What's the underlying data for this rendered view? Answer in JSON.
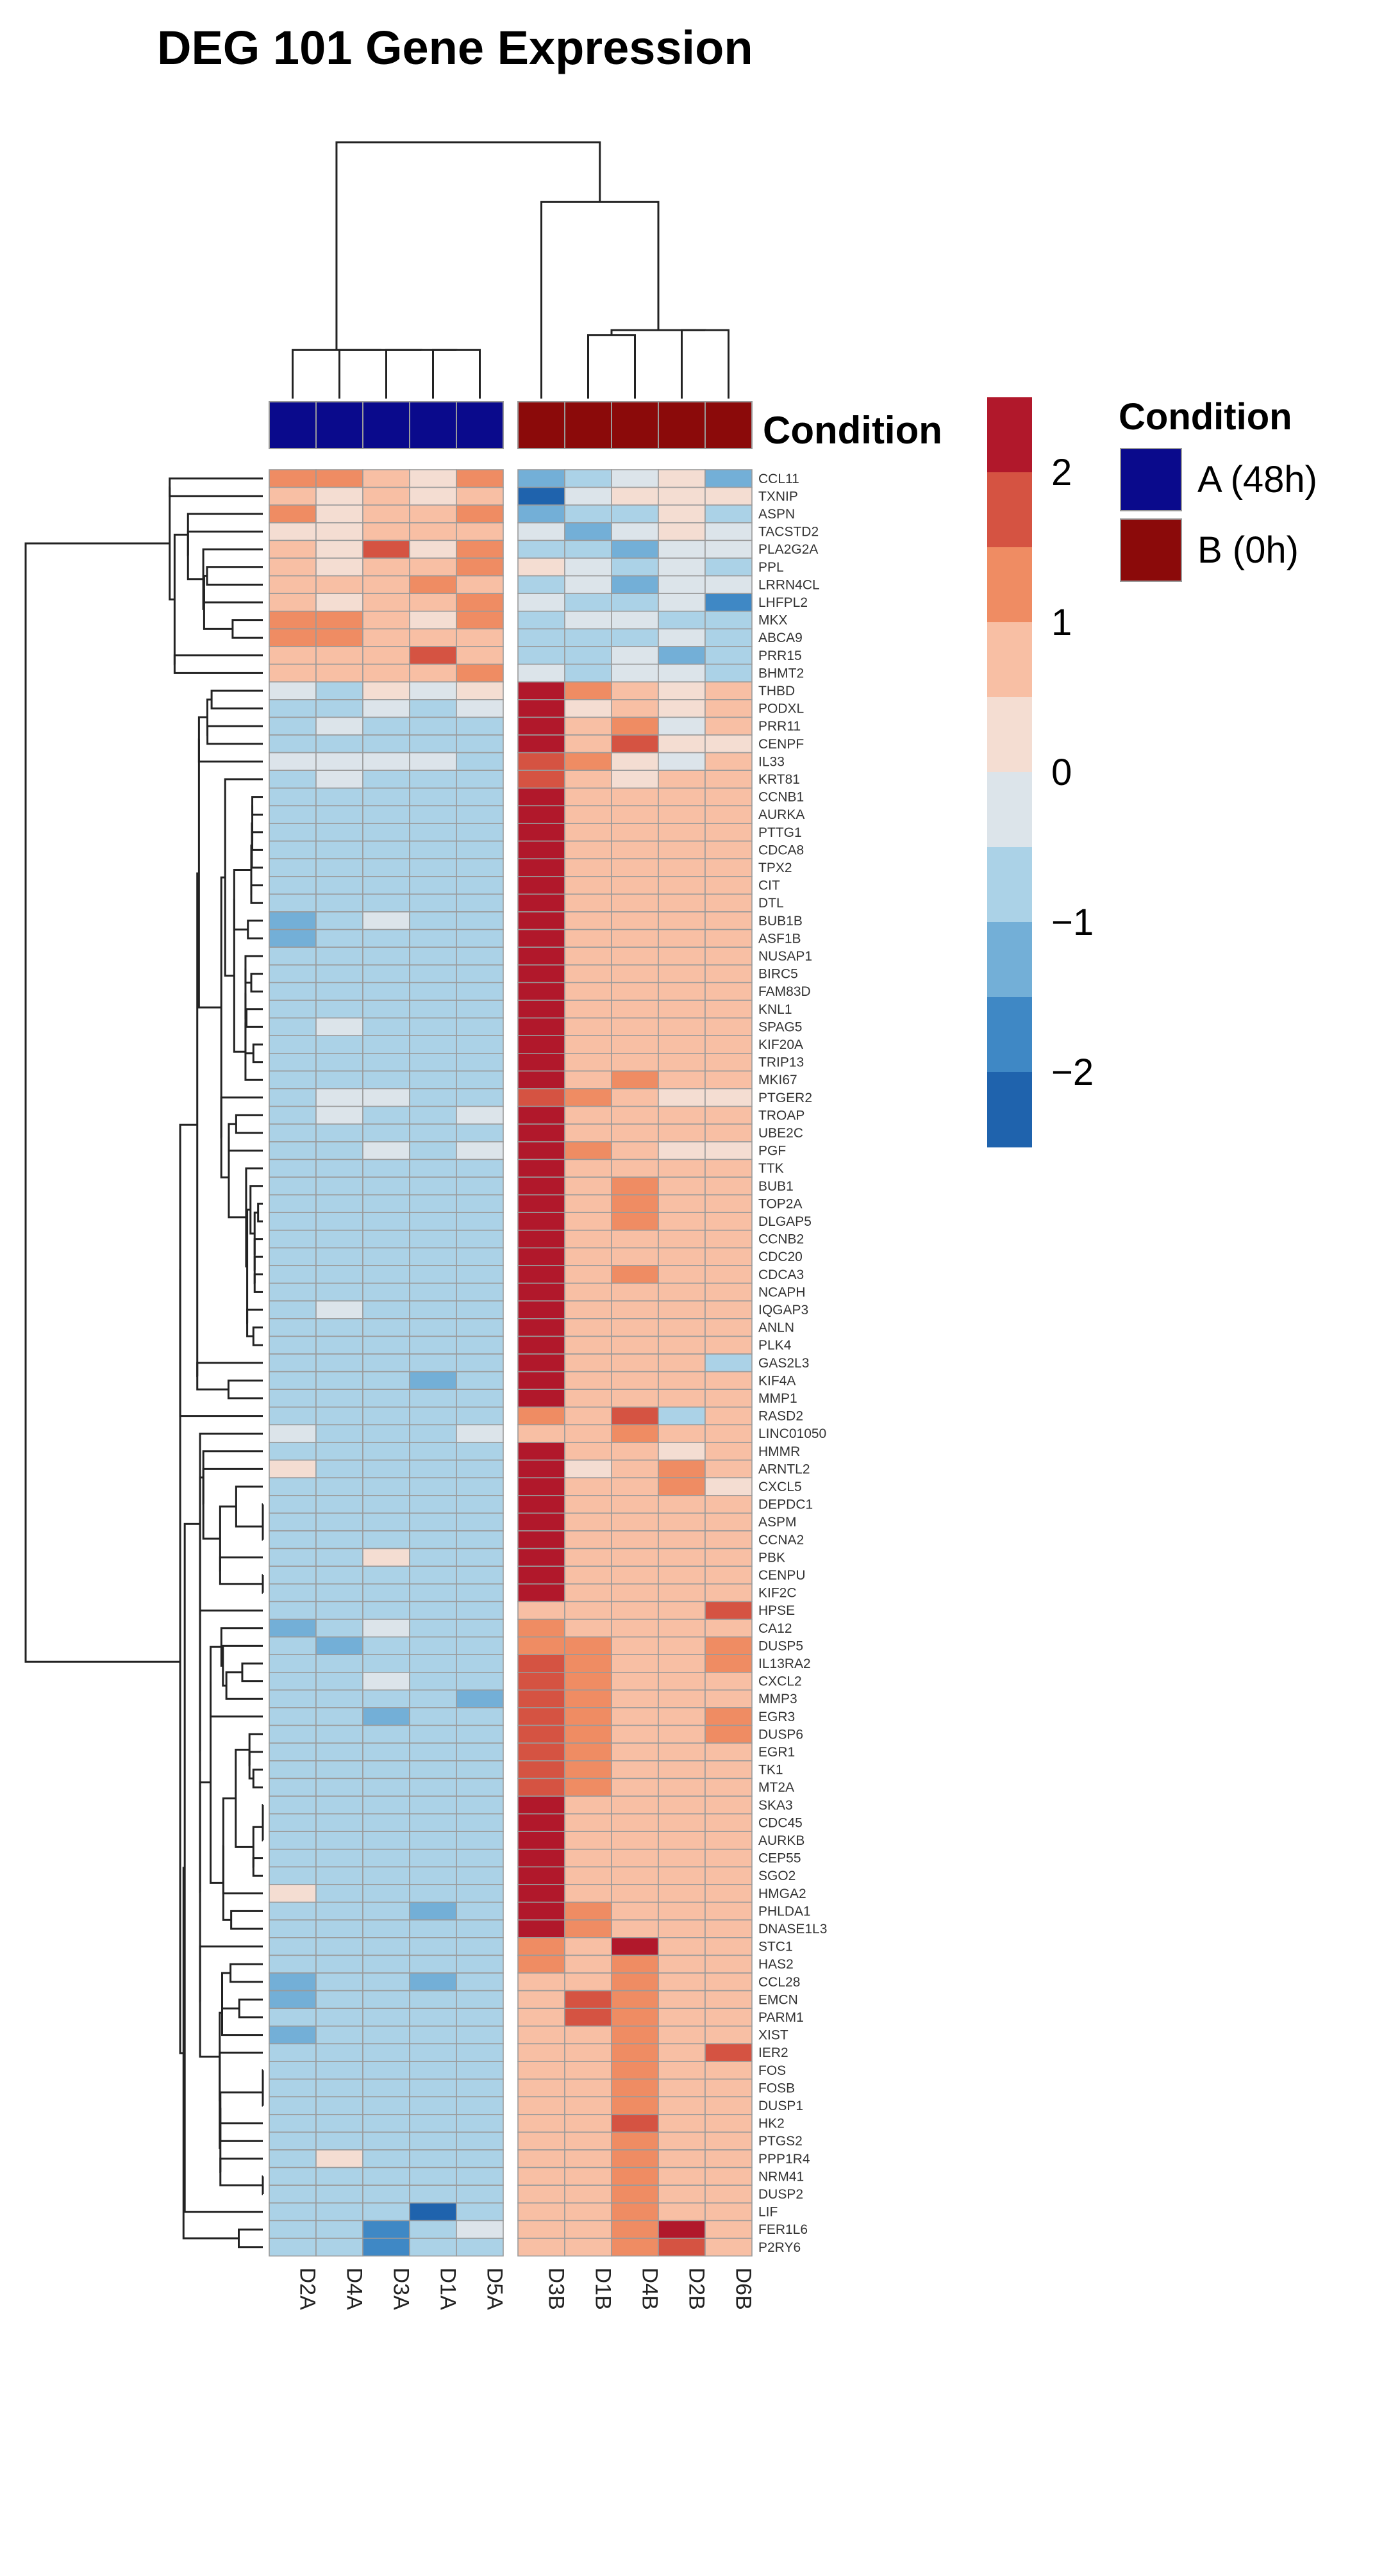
{
  "chart_data": {
    "type": "heatmap",
    "title": "DEG 101 Gene Expression",
    "samples": [
      "D2A",
      "D4A",
      "D3A",
      "D1A",
      "D5A",
      "D3B",
      "D1B",
      "D4B",
      "D2B",
      "D6B"
    ],
    "condition_label": "Condition",
    "conditions": [
      {
        "name": "A (48h)",
        "color": "#0a0a8c"
      },
      {
        "name": "B (0h)",
        "color": "#8b0a0a"
      }
    ],
    "sample_condition": [
      "A (48h)",
      "A (48h)",
      "A (48h)",
      "A (48h)",
      "A (48h)",
      "B (0h)",
      "B (0h)",
      "B (0h)",
      "B (0h)",
      "B (0h)"
    ],
    "color_scale": {
      "min": -2.5,
      "max": 2.5,
      "ticks": [
        "2",
        "1",
        "0",
        "−1",
        "−2"
      ],
      "tick_values": [
        2,
        1,
        0,
        -1,
        -2
      ],
      "colors": [
        "#1f63ad",
        "#3f88c5",
        "#73afd7",
        "#abd2e7",
        "#dce4ea",
        "#f4ddd2",
        "#f8bfa4",
        "#ef8c63",
        "#d55342",
        "#b1182b"
      ]
    },
    "genes": [
      "CCL11",
      "TXNIP",
      "ASPN",
      "TACSTD2",
      "PLA2G2A",
      "PPL",
      "LRRN4CL",
      "LHFPL2",
      "MKX",
      "ABCA9",
      "PRR15",
      "BHMT2",
      "THBD",
      "PODXL",
      "PRR11",
      "CENPF",
      "IL33",
      "KRT81",
      "CCNB1",
      "AURKA",
      "PTTG1",
      "CDCA8",
      "TPX2",
      "CIT",
      "DTL",
      "BUB1B",
      "ASF1B",
      "NUSAP1",
      "BIRC5",
      "FAM83D",
      "KNL1",
      "SPAG5",
      "KIF20A",
      "TRIP13",
      "MKI67",
      "PTGER2",
      "TROAP",
      "UBE2C",
      "PGF",
      "TTK",
      "BUB1",
      "TOP2A",
      "DLGAP5",
      "CCNB2",
      "CDC20",
      "CDCA3",
      "NCAPH",
      "IQGAP3",
      "ANLN",
      "PLK4",
      "GAS2L3",
      "KIF4A",
      "MMP1",
      "RASD2",
      "LINC01050",
      "HMMR",
      "ARNTL2",
      "CXCL5",
      "DEPDC1",
      "ASPM",
      "CCNA2",
      "PBK",
      "CENPU",
      "KIF2C",
      "HPSE",
      "CA12",
      "DUSP5",
      "IL13RA2",
      "CXCL2",
      "MMP3",
      "EGR3",
      "DUSP6",
      "EGR1",
      "TK1",
      "MT2A",
      "SKA3",
      "CDC45",
      "AURKB",
      "CEP55",
      "SGO2",
      "HMGA2",
      "PHLDA1",
      "DNASE1L3",
      "STC1",
      "HAS2",
      "CCL28",
      "EMCN",
      "PARM1",
      "XIST",
      "IER2",
      "FOS",
      "FOSB",
      "DUSP1",
      "HK2",
      "PTGS2",
      "PPP1R4",
      "NRM41",
      "DUSP2",
      "LIF",
      "FER1L6",
      "P2RY6"
    ],
    "values": [
      [
        1.0,
        1.1,
        0.7,
        0.3,
        1.1,
        -1.2,
        -0.9,
        -0.1,
        0.2,
        -1.1
      ],
      [
        0.5,
        0.3,
        0.7,
        0.1,
        0.9,
        -2.3,
        -0.2,
        0.0,
        0.1,
        0.0
      ],
      [
        1.2,
        0.4,
        0.9,
        0.8,
        1.0,
        -1.3,
        -0.8,
        -0.7,
        0.1,
        -0.7
      ],
      [
        0.2,
        0.0,
        0.8,
        0.6,
        0.5,
        -0.3,
        -1.2,
        -0.5,
        0.3,
        -0.2
      ],
      [
        0.9,
        0.3,
        1.6,
        0.3,
        1.2,
        -1.0,
        -0.9,
        -1.3,
        -0.2,
        -0.5
      ],
      [
        0.8,
        0.2,
        0.9,
        0.9,
        1.2,
        0.1,
        -0.5,
        -1.0,
        -0.2,
        -0.7
      ],
      [
        0.6,
        0.5,
        0.8,
        1.1,
        0.8,
        -0.7,
        -0.2,
        -1.2,
        -0.4,
        -0.2
      ],
      [
        0.7,
        0.2,
        0.9,
        0.8,
        1.1,
        -0.4,
        -0.6,
        -0.9,
        -0.1,
        -1.6
      ],
      [
        1.1,
        1.0,
        0.8,
        0.3,
        1.0,
        -0.7,
        -0.5,
        -0.4,
        -0.6,
        -0.8
      ],
      [
        1.3,
        1.0,
        0.9,
        0.6,
        0.9,
        -0.9,
        -0.6,
        -0.8,
        -0.4,
        -0.9
      ],
      [
        0.8,
        0.5,
        0.6,
        1.8,
        0.7,
        -0.9,
        -0.6,
        -0.1,
        -1.5,
        -0.7
      ],
      [
        0.8,
        0.9,
        0.6,
        0.7,
        1.0,
        -0.3,
        -0.8,
        -0.5,
        -0.3,
        -0.9
      ],
      [
        -0.5,
        -0.8,
        0.1,
        -0.5,
        0.0,
        2.3,
        1.0,
        0.9,
        0.2,
        0.7
      ],
      [
        -0.8,
        -0.6,
        -0.3,
        -0.6,
        -0.5,
        2.4,
        0.3,
        0.6,
        0.2,
        0.5
      ],
      [
        -0.9,
        -0.5,
        -0.6,
        -0.9,
        -0.9,
        2.1,
        0.9,
        1.1,
        -0.4,
        0.6
      ],
      [
        -0.7,
        -0.9,
        -0.7,
        -0.7,
        -0.8,
        2.2,
        0.7,
        1.8,
        0.3,
        0.3
      ],
      [
        -0.4,
        -0.5,
        -0.3,
        -0.2,
        -0.8,
        1.7,
        1.4,
        0.4,
        -0.3,
        0.6
      ],
      [
        -0.6,
        -0.3,
        -0.6,
        -0.6,
        -0.7,
        1.8,
        0.6,
        0.2,
        0.5,
        0.6
      ],
      [
        -0.7,
        -0.6,
        -0.6,
        -0.8,
        -0.8,
        2.3,
        0.5,
        0.5,
        0.6,
        0.6
      ],
      [
        -0.7,
        -0.6,
        -0.7,
        -0.8,
        -0.7,
        2.3,
        0.6,
        0.6,
        0.7,
        0.6
      ],
      [
        -0.8,
        -0.7,
        -0.7,
        -0.9,
        -0.8,
        2.3,
        0.6,
        0.6,
        0.6,
        0.5
      ],
      [
        -0.8,
        -0.7,
        -0.6,
        -0.8,
        -0.8,
        2.2,
        0.5,
        0.6,
        0.6,
        0.6
      ],
      [
        -0.8,
        -0.6,
        -0.7,
        -0.9,
        -0.8,
        2.3,
        0.7,
        0.6,
        0.5,
        0.6
      ],
      [
        -0.7,
        -0.7,
        -0.6,
        -0.8,
        -0.6,
        2.3,
        0.6,
        0.5,
        0.5,
        0.5
      ],
      [
        -0.9,
        -0.7,
        -0.6,
        -0.8,
        -0.6,
        2.3,
        0.6,
        0.6,
        0.5,
        0.6
      ],
      [
        -1.3,
        -0.6,
        -0.4,
        -0.8,
        -0.8,
        2.3,
        0.6,
        0.5,
        0.5,
        0.5
      ],
      [
        -1.4,
        -0.7,
        -0.6,
        -0.7,
        -0.7,
        2.3,
        0.6,
        0.5,
        0.6,
        0.6
      ],
      [
        -0.8,
        -0.6,
        -0.7,
        -0.8,
        -0.8,
        2.3,
        0.6,
        0.9,
        0.6,
        0.5
      ],
      [
        -0.8,
        -0.6,
        -0.7,
        -0.8,
        -0.8,
        2.2,
        0.6,
        0.6,
        0.6,
        0.5
      ],
      [
        -0.8,
        -0.7,
        -0.7,
        -0.7,
        -0.9,
        2.3,
        0.6,
        0.5,
        0.6,
        0.6
      ],
      [
        -0.8,
        -0.6,
        -0.6,
        -0.8,
        -1.0,
        2.2,
        0.6,
        0.9,
        0.6,
        0.6
      ],
      [
        -0.8,
        -0.3,
        -0.7,
        -0.8,
        -0.9,
        2.2,
        0.6,
        0.9,
        0.6,
        0.7
      ],
      [
        -0.8,
        -0.6,
        -0.9,
        -0.8,
        -0.8,
        2.2,
        0.6,
        0.6,
        0.6,
        0.6
      ],
      [
        -0.8,
        -0.6,
        -0.7,
        -0.8,
        -0.8,
        2.2,
        0.6,
        0.6,
        0.6,
        0.6
      ],
      [
        -0.8,
        -0.7,
        -0.7,
        -0.8,
        -0.8,
        2.2,
        0.6,
        1.0,
        0.6,
        0.5
      ],
      [
        -0.7,
        -0.4,
        -0.5,
        -0.8,
        -0.7,
        1.8,
        1.1,
        0.6,
        0.1,
        0.4
      ],
      [
        -0.7,
        -0.5,
        -0.9,
        -0.9,
        -0.4,
        2.2,
        0.9,
        0.6,
        0.6,
        0.7
      ],
      [
        -0.8,
        -0.7,
        -0.7,
        -0.9,
        -0.7,
        2.2,
        0.6,
        0.7,
        0.6,
        0.5
      ],
      [
        -1.0,
        -0.6,
        -0.3,
        -0.9,
        -0.5,
        2.1,
        1.0,
        0.7,
        0.3,
        0.4
      ],
      [
        -0.8,
        -0.7,
        -0.7,
        -0.8,
        -0.8,
        2.2,
        0.6,
        0.6,
        0.6,
        0.6
      ],
      [
        -0.7,
        -0.7,
        -0.9,
        -0.8,
        -0.8,
        2.3,
        0.6,
        1.0,
        0.6,
        0.5
      ],
      [
        -0.8,
        -0.6,
        -0.7,
        -0.8,
        -0.8,
        2.2,
        0.6,
        1.0,
        0.6,
        0.6
      ],
      [
        -0.8,
        -0.7,
        -0.7,
        -0.8,
        -0.8,
        2.2,
        0.6,
        1.0,
        0.6,
        0.6
      ],
      [
        -0.8,
        -0.6,
        -0.7,
        -0.7,
        -0.8,
        2.3,
        0.6,
        0.9,
        0.6,
        0.6
      ],
      [
        -0.7,
        -0.6,
        -0.7,
        -0.8,
        -0.8,
        2.2,
        0.6,
        0.9,
        0.6,
        0.5
      ],
      [
        -0.8,
        -0.6,
        -0.7,
        -0.8,
        -0.7,
        2.3,
        0.6,
        1.0,
        0.6,
        0.6
      ],
      [
        -0.8,
        -0.6,
        -0.7,
        -0.8,
        -0.8,
        2.2,
        0.6,
        0.9,
        0.6,
        0.6
      ],
      [
        -0.7,
        -0.3,
        -0.7,
        -0.8,
        -0.7,
        2.2,
        0.6,
        0.9,
        0.6,
        0.5
      ],
      [
        -0.8,
        -0.6,
        -0.7,
        -0.8,
        -0.8,
        2.2,
        0.6,
        0.9,
        0.6,
        0.6
      ],
      [
        -0.8,
        -0.6,
        -0.6,
        -0.8,
        -0.7,
        2.2,
        0.6,
        0.8,
        0.6,
        0.5
      ],
      [
        -0.8,
        -0.6,
        -0.9,
        -0.9,
        -0.8,
        2.2,
        0.6,
        0.8,
        0.6,
        -0.8
      ],
      [
        -0.8,
        -0.6,
        -0.7,
        -1.5,
        -0.7,
        2.2,
        0.6,
        0.8,
        0.6,
        0.5
      ],
      [
        -0.8,
        -0.6,
        -0.7,
        -0.8,
        -0.8,
        2.3,
        0.6,
        0.8,
        0.5,
        0.6
      ],
      [
        -0.8,
        -0.6,
        -0.7,
        -0.8,
        -0.6,
        1.4,
        0.7,
        1.6,
        -0.8,
        0.6
      ],
      [
        -0.5,
        -0.7,
        -0.8,
        -0.6,
        -0.5,
        0.9,
        0.9,
        1.0,
        0.9,
        0.7
      ],
      [
        -0.8,
        -0.7,
        -0.6,
        -0.8,
        -0.8,
        2.2,
        0.6,
        0.6,
        0.3,
        0.5
      ],
      [
        0.3,
        -0.7,
        -0.6,
        -0.8,
        -0.6,
        2.2,
        0.3,
        0.6,
        1.2,
        0.6
      ],
      [
        -0.7,
        -0.6,
        -0.8,
        -0.6,
        -0.6,
        2.2,
        0.5,
        0.5,
        1.0,
        0.4
      ],
      [
        -0.8,
        -0.6,
        -0.7,
        -0.8,
        -0.8,
        2.2,
        0.6,
        0.6,
        0.6,
        0.6
      ],
      [
        -0.8,
        -0.6,
        -0.7,
        -0.8,
        -0.8,
        2.2,
        0.6,
        0.6,
        0.6,
        0.6
      ],
      [
        -0.8,
        -0.6,
        -0.7,
        -0.8,
        -0.8,
        2.2,
        0.6,
        0.6,
        0.6,
        0.6
      ],
      [
        -0.8,
        -0.6,
        0.2,
        -0.8,
        -0.7,
        2.2,
        0.6,
        0.6,
        0.6,
        0.6
      ],
      [
        -0.8,
        -0.6,
        -0.7,
        -0.8,
        -0.8,
        2.2,
        0.6,
        0.6,
        0.6,
        0.6
      ],
      [
        -0.8,
        -0.6,
        -0.7,
        -0.8,
        -0.8,
        2.2,
        0.6,
        0.6,
        0.6,
        0.6
      ],
      [
        -0.6,
        -0.8,
        -0.6,
        -0.8,
        -0.8,
        0.9,
        0.6,
        0.6,
        0.7,
        1.9
      ],
      [
        -1.4,
        -0.6,
        -0.3,
        -0.8,
        -0.7,
        1.2,
        0.9,
        0.6,
        0.6,
        0.9
      ],
      [
        -0.7,
        -1.3,
        -0.6,
        -0.7,
        -0.8,
        1.3,
        1.0,
        0.6,
        0.6,
        1.0
      ],
      [
        -0.8,
        -0.7,
        -0.7,
        -0.8,
        -0.7,
        1.8,
        1.1,
        0.6,
        0.6,
        1.0
      ],
      [
        -0.9,
        -0.7,
        -0.3,
        -0.8,
        -0.6,
        1.8,
        1.1,
        0.6,
        0.6,
        0.9
      ],
      [
        -0.8,
        -0.6,
        -0.6,
        -0.8,
        -1.4,
        1.8,
        1.2,
        0.6,
        0.6,
        0.9
      ],
      [
        -0.7,
        -0.6,
        -1.5,
        -0.8,
        -0.7,
        1.5,
        1.4,
        0.6,
        0.6,
        1.0
      ],
      [
        -0.8,
        -0.6,
        -0.7,
        -0.8,
        -0.8,
        1.8,
        1.2,
        0.6,
        0.6,
        1.0
      ],
      [
        -0.6,
        -0.7,
        -0.6,
        -0.8,
        -0.6,
        1.8,
        1.1,
        0.6,
        0.6,
        0.9
      ],
      [
        -0.7,
        -0.6,
        -0.8,
        -0.8,
        -0.7,
        1.8,
        1.1,
        0.6,
        0.6,
        0.9
      ],
      [
        -0.8,
        -0.6,
        -0.7,
        -0.8,
        -0.8,
        1.9,
        1.1,
        0.6,
        0.6,
        0.9
      ],
      [
        -0.8,
        -0.6,
        -0.7,
        -0.8,
        -0.8,
        2.2,
        0.7,
        0.6,
        0.6,
        0.9
      ],
      [
        -0.8,
        -0.6,
        -0.7,
        -0.8,
        -0.8,
        2.2,
        0.7,
        0.6,
        0.6,
        0.9
      ],
      [
        -0.8,
        -0.6,
        -0.7,
        -0.8,
        -0.8,
        2.2,
        0.7,
        0.6,
        0.6,
        0.9
      ],
      [
        -0.6,
        -0.6,
        -0.7,
        -0.8,
        -0.8,
        2.2,
        0.7,
        0.6,
        0.6,
        0.9
      ],
      [
        -0.8,
        -0.6,
        -0.7,
        -0.8,
        -0.8,
        2.2,
        0.7,
        0.6,
        0.6,
        0.9
      ],
      [
        0.0,
        -0.9,
        -0.7,
        -0.8,
        -0.8,
        2.2,
        0.7,
        0.6,
        0.6,
        0.9
      ],
      [
        -0.8,
        -0.6,
        -0.7,
        -1.4,
        -0.8,
        2.2,
        1.2,
        0.6,
        0.6,
        0.9
      ],
      [
        -0.7,
        -0.6,
        -0.7,
        -0.8,
        -0.6,
        2.2,
        1.0,
        0.6,
        0.6,
        0.9
      ],
      [
        -0.8,
        -0.6,
        -0.7,
        -0.8,
        -0.8,
        1.0,
        0.8,
        2.4,
        0.9,
        0.9
      ],
      [
        -0.8,
        -0.6,
        -0.7,
        -0.8,
        -0.8,
        1.0,
        0.8,
        1.0,
        0.9,
        0.9
      ],
      [
        -1.1,
        -0.6,
        -0.7,
        -1.4,
        -0.8,
        0.9,
        0.8,
        1.1,
        0.9,
        0.9
      ],
      [
        -1.3,
        -0.6,
        -0.7,
        -0.8,
        -0.8,
        0.9,
        1.6,
        1.1,
        0.9,
        0.9
      ],
      [
        -0.8,
        -0.6,
        -0.7,
        -0.8,
        -0.8,
        0.9,
        1.6,
        1.1,
        0.9,
        0.9
      ],
      [
        -1.5,
        -0.6,
        -0.7,
        -0.8,
        -0.8,
        0.9,
        0.8,
        1.0,
        0.9,
        0.9
      ],
      [
        -0.8,
        -0.6,
        -0.7,
        -0.8,
        -0.8,
        0.9,
        0.8,
        1.0,
        0.9,
        1.8
      ],
      [
        -0.8,
        -0.6,
        -0.7,
        -0.8,
        -0.8,
        0.9,
        0.8,
        1.0,
        0.9,
        0.9
      ],
      [
        -0.8,
        -0.6,
        -0.7,
        -0.8,
        -0.8,
        0.9,
        0.8,
        1.0,
        0.9,
        0.9
      ],
      [
        -0.8,
        -0.6,
        -0.7,
        -0.8,
        -0.8,
        0.9,
        0.8,
        1.0,
        0.9,
        0.9
      ],
      [
        -0.8,
        -0.6,
        -0.7,
        -0.8,
        -0.8,
        0.9,
        0.8,
        1.9,
        0.9,
        0.9
      ],
      [
        -0.8,
        -0.6,
        -0.7,
        -0.8,
        -0.8,
        0.9,
        0.8,
        1.0,
        0.9,
        0.9
      ],
      [
        -0.8,
        0.3,
        -0.7,
        -0.8,
        -0.8,
        0.9,
        0.8,
        1.0,
        0.9,
        0.9
      ],
      [
        -0.8,
        -0.6,
        -0.7,
        -0.8,
        -0.8,
        0.9,
        0.8,
        1.0,
        0.9,
        0.9
      ],
      [
        -0.8,
        -0.6,
        -0.7,
        -0.8,
        -0.8,
        0.9,
        0.8,
        1.0,
        0.9,
        0.9
      ],
      [
        -0.8,
        -0.6,
        -0.7,
        -2.3,
        -0.8,
        0.9,
        0.8,
        1.0,
        0.9,
        0.9
      ],
      [
        -0.8,
        -0.6,
        -1.6,
        -0.6,
        -0.5,
        0.9,
        0.8,
        1.0,
        2.0,
        0.9
      ],
      [
        -0.8,
        -0.6,
        -1.8,
        -0.8,
        -0.8,
        0.9,
        0.8,
        1.0,
        1.7,
        0.9
      ]
    ]
  }
}
